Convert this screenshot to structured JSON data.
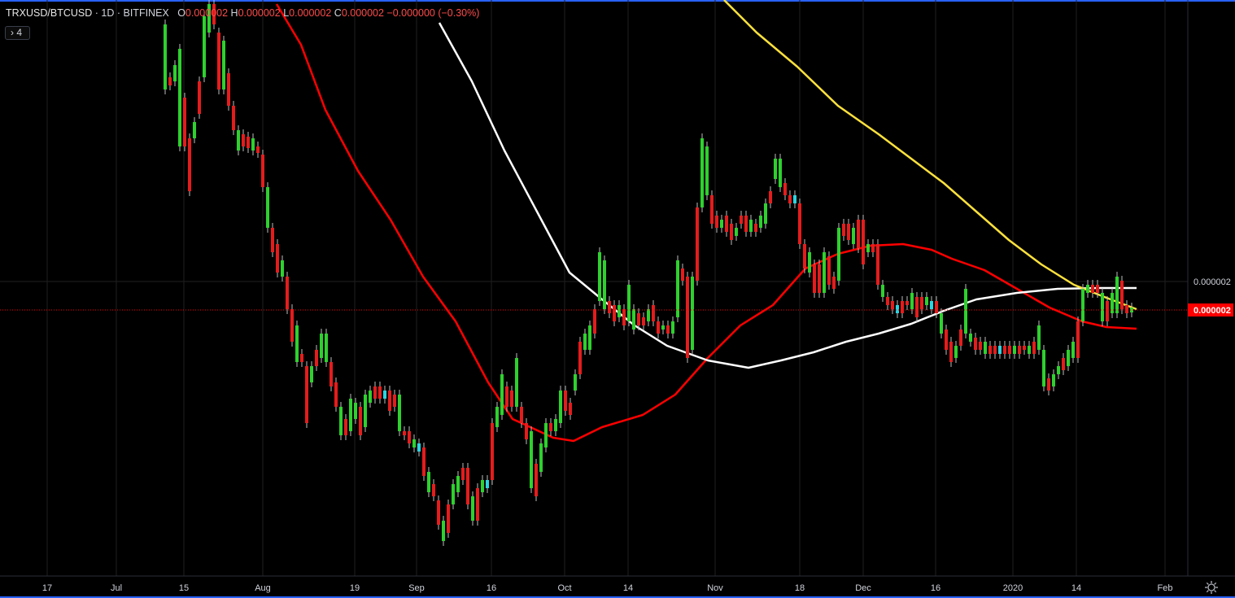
{
  "header": {
    "symbol": "TRXUSD/BTCUSD",
    "interval": "1D",
    "exchange": "BITFINEX",
    "o_label": "O",
    "o_value": "0.000002",
    "h_label": "H",
    "h_value": "0.000002",
    "l_label": "L",
    "l_value": "0.000002",
    "c_label": "C",
    "c_value": "0.000002",
    "change": "−0.000000 (−0.30%)"
  },
  "indicator_button": "4",
  "icons": {
    "collapse": "chevron-right-icon",
    "settings": "gear-icon"
  },
  "colors": {
    "background": "#000000",
    "up": "#2ed12e",
    "down": "#e51c1c",
    "neutral": "#2ad4e0",
    "ma_fast": "#ff0000",
    "ma_mid": "#ffffff",
    "ma_slow": "#ffe23c",
    "grid": "#1f1f1f",
    "price_tag": "#ff0000",
    "axis_text": "#d1d4dc"
  },
  "chart_data": {
    "type": "candlestick",
    "price_axis_labels": [
      "0.000002",
      "0.000002"
    ],
    "time_axis_labels": [
      "17",
      "Jul",
      "15",
      "Aug",
      "19",
      "Sep",
      "16",
      "Oct",
      "14",
      "Nov",
      "18",
      "Dec",
      "16",
      "2020",
      "14",
      "Feb"
    ],
    "last_price": "0.000002",
    "grid": true,
    "legend": "top-left",
    "moving_averages": [
      {
        "color": "#ff0000",
        "description": "fast MA (red)"
      },
      {
        "color": "#ffffff",
        "description": "mid MA (white)"
      },
      {
        "color": "#ffe23c",
        "description": "slow MA (yellow)"
      }
    ]
  }
}
